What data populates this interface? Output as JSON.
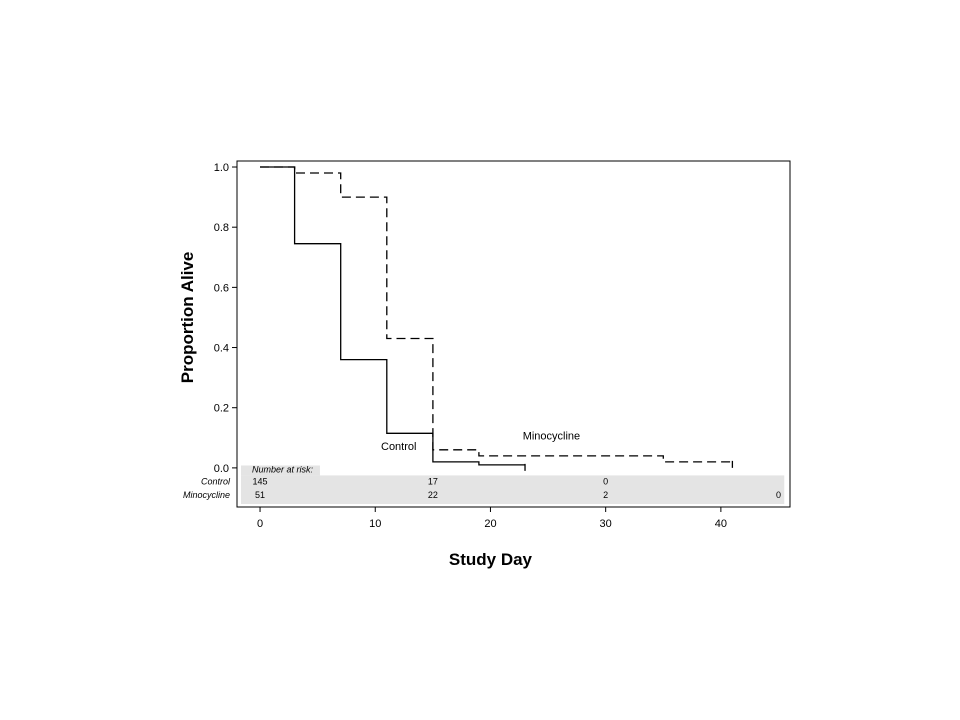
{
  "chart_data": {
    "type": "line",
    "xlabel": "Study Day",
    "ylabel": "Proportion Alive",
    "xlim": [
      -2,
      46
    ],
    "ylim": [
      -0.13,
      1.02
    ],
    "xticks": [
      0,
      10,
      20,
      30,
      40
    ],
    "yticks": [
      0.0,
      0.2,
      0.4,
      0.6,
      0.8,
      1.0
    ],
    "ytick_labels": [
      "0.0",
      "0.2",
      "0.4",
      "0.6",
      "0.8",
      "1.0"
    ],
    "series": [
      {
        "name": "Control",
        "style": "solid",
        "color": "#000000",
        "x": [
          0,
          3,
          3,
          7,
          7,
          11,
          11,
          15,
          15,
          19,
          19,
          23
        ],
        "y": [
          1.0,
          1.0,
          0.745,
          0.745,
          0.36,
          0.36,
          0.115,
          0.115,
          0.02,
          0.02,
          0.01,
          0.01
        ],
        "label_at": [
          10.5,
          0.06
        ]
      },
      {
        "name": "Minocycline",
        "style": "dashed",
        "color": "#000000",
        "x": [
          0,
          3,
          3,
          7,
          7,
          11,
          11,
          15,
          15,
          19,
          19,
          35,
          35,
          41
        ],
        "y": [
          1.0,
          1.0,
          0.98,
          0.98,
          0.9,
          0.9,
          0.43,
          0.43,
          0.06,
          0.06,
          0.04,
          0.04,
          0.02,
          0.02
        ],
        "label_at": [
          22.8,
          0.095
        ]
      }
    ],
    "censor_marks": [
      {
        "series": "Control",
        "x": 23,
        "y": 0.01
      },
      {
        "series": "Minocycline",
        "x": 41,
        "y": 0.02
      }
    ],
    "risk_table": {
      "header": "Number at risk:",
      "rows": [
        {
          "label": "Control",
          "values": [
            {
              "x": 0,
              "v": "145"
            },
            {
              "x": 15,
              "v": "17"
            },
            {
              "x": 30,
              "v": "0"
            }
          ]
        },
        {
          "label": "Minocycline",
          "values": [
            {
              "x": 0,
              "v": "51"
            },
            {
              "x": 15,
              "v": "22"
            },
            {
              "x": 30,
              "v": "2"
            },
            {
              "x": 45,
              "v": "0"
            }
          ]
        }
      ]
    }
  }
}
